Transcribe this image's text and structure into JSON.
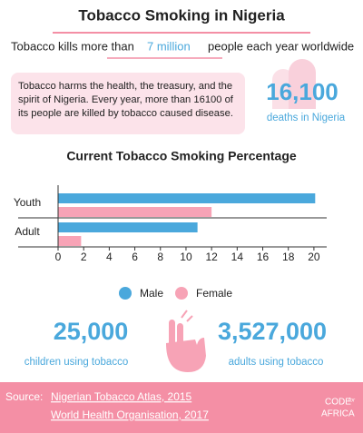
{
  "header": {
    "title": "Tobacco Smoking in Nigeria",
    "subtitle_start": "Tobacco kills more than",
    "subtitle_highlight": "7 million",
    "subtitle_end": "people each year  worldwide"
  },
  "info": {
    "text": "Tobacco harms the health, the treasury, and the spirit of Nigeria. Every year, more than 16100 of its people are killed by tobacco caused disease.",
    "stat": "16,100",
    "stat_label": "deaths in Nigeria"
  },
  "chart_data": {
    "type": "hbar",
    "title": "Current Tobacco Smoking Percentage",
    "categories": [
      "Youth",
      "Adult"
    ],
    "series": [
      {
        "name": "Male",
        "color": "#4aa8dc",
        "values": [
          20.1,
          10.9
        ]
      },
      {
        "name": "Female",
        "color": "#f7a3b6",
        "values": [
          12.0,
          1.8
        ]
      }
    ],
    "xlim": [
      0,
      21
    ],
    "xticks": [
      0,
      2,
      4,
      6,
      8,
      10,
      12,
      14,
      16,
      18,
      20
    ],
    "legend": "bottom"
  },
  "stats": [
    {
      "value": "25,000",
      "label": "children using tobacco"
    },
    {
      "value": "3,527,000",
      "label": "adults using tobacco"
    }
  ],
  "footer": {
    "label": "Source:",
    "sources": [
      "Nigerian Tobacco Atlas, 2015",
      "World Health Organisation, 2017"
    ],
    "logo_top": "CODE",
    "logo_mid": "for",
    "logo_bottom": "AFRICA"
  }
}
